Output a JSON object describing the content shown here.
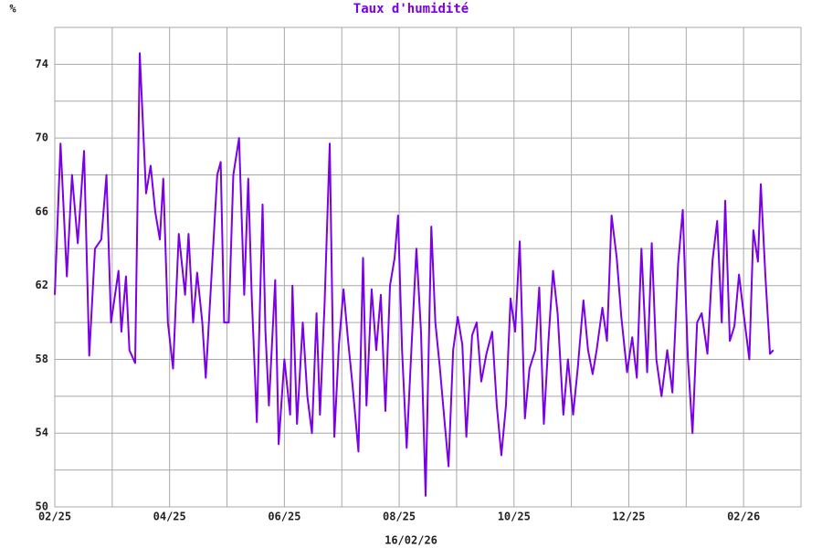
{
  "chart_data": {
    "type": "line",
    "title": "Taux d'humidité",
    "ylabel": "%",
    "xlabel": "16/02/26",
    "color": "#7a00e6",
    "grid": true,
    "xlim": [
      0,
      13
    ],
    "ylim": [
      50,
      76
    ],
    "xticks": [
      {
        "value": 0,
        "label": "02/25"
      },
      {
        "value": 2,
        "label": "04/25"
      },
      {
        "value": 4,
        "label": "06/25"
      },
      {
        "value": 6,
        "label": "08/25"
      },
      {
        "value": 8,
        "label": "10/25"
      },
      {
        "value": 10,
        "label": "12/25"
      },
      {
        "value": 12,
        "label": "02/26"
      }
    ],
    "yticks": [
      50,
      54,
      58,
      62,
      66,
      70,
      74
    ],
    "x": [
      0.0,
      0.1,
      0.21,
      0.3,
      0.4,
      0.51,
      0.6,
      0.7,
      0.81,
      0.9,
      0.98,
      1.11,
      1.16,
      1.24,
      1.3,
      1.4,
      1.48,
      1.59,
      1.67,
      1.75,
      1.83,
      1.89,
      1.97,
      2.06,
      2.16,
      2.27,
      2.33,
      2.41,
      2.48,
      2.57,
      2.63,
      2.73,
      2.83,
      2.89,
      2.95,
      3.03,
      3.11,
      3.21,
      3.3,
      3.37,
      3.43,
      3.52,
      3.62,
      3.67,
      3.73,
      3.84,
      3.9,
      4.0,
      4.1,
      4.14,
      4.22,
      4.32,
      4.4,
      4.48,
      4.56,
      4.62,
      4.7,
      4.79,
      4.87,
      4.95,
      5.03,
      5.11,
      5.19,
      5.29,
      5.37,
      5.43,
      5.52,
      5.6,
      5.68,
      5.76,
      5.84,
      5.92,
      5.98,
      6.05,
      6.13,
      6.22,
      6.3,
      6.38,
      6.46,
      6.56,
      6.63,
      6.71,
      6.78,
      6.86,
      6.94,
      7.02,
      7.1,
      7.17,
      7.27,
      7.35,
      7.43,
      7.52,
      7.62,
      7.7,
      7.78,
      7.86,
      7.94,
      8.02,
      8.1,
      8.19,
      8.27,
      8.37,
      8.44,
      8.52,
      8.6,
      8.68,
      8.76,
      8.86,
      8.94,
      9.03,
      9.11,
      9.21,
      9.29,
      9.37,
      9.44,
      9.54,
      9.62,
      9.7,
      9.79,
      9.87,
      9.97,
      10.06,
      10.14,
      10.22,
      10.32,
      10.4,
      10.48,
      10.57,
      10.67,
      10.76,
      10.86,
      10.94,
      11.03,
      11.11,
      11.19,
      11.27,
      11.37,
      11.46,
      11.54,
      11.62,
      11.68,
      11.76,
      11.84,
      11.92,
      12.0,
      12.1,
      12.17,
      12.25,
      12.3,
      12.38,
      12.46,
      12.52
    ],
    "values": [
      61.5,
      69.7,
      62.5,
      68.0,
      64.3,
      69.3,
      58.2,
      64.0,
      64.5,
      68.0,
      60.0,
      62.8,
      59.5,
      62.5,
      58.5,
      57.8,
      74.6,
      67.0,
      68.5,
      66.0,
      64.5,
      67.8,
      60.0,
      57.5,
      64.8,
      61.5,
      64.8,
      60.0,
      62.7,
      60.0,
      57.0,
      62.5,
      68.0,
      68.7,
      60.0,
      60.0,
      68.0,
      70.0,
      61.5,
      67.8,
      61.5,
      54.6,
      66.4,
      59.5,
      55.5,
      62.3,
      53.4,
      58.0,
      55.0,
      62.0,
      54.5,
      60.0,
      56.0,
      54.0,
      60.5,
      55.0,
      61.0,
      69.7,
      53.8,
      58.8,
      61.8,
      59.0,
      56.5,
      53.0,
      63.5,
      55.5,
      61.8,
      58.5,
      61.5,
      55.2,
      62.0,
      63.5,
      65.8,
      58.5,
      53.2,
      59.0,
      64.0,
      59.5,
      50.6,
      65.2,
      60.0,
      57.5,
      55.0,
      52.2,
      58.5,
      60.3,
      58.8,
      53.8,
      59.3,
      60.0,
      56.8,
      58.3,
      59.5,
      55.5,
      52.8,
      55.5,
      61.3,
      59.5,
      64.4,
      54.8,
      57.5,
      58.5,
      61.9,
      54.5,
      59.0,
      62.8,
      60.5,
      55.0,
      58.0,
      55.0,
      57.5,
      61.2,
      58.5,
      57.2,
      58.5,
      60.8,
      59.0,
      65.8,
      63.5,
      60.3,
      57.3,
      59.2,
      57.0,
      64.0,
      57.3,
      64.3,
      58.0,
      56.0,
      58.5,
      56.2,
      63.2,
      66.1,
      58.0,
      54.0,
      60.0,
      60.5,
      58.3,
      63.4,
      65.5,
      60.0,
      66.6,
      59.0,
      59.8,
      62.6,
      60.5,
      58.0,
      65.0,
      63.3,
      67.5,
      62.5,
      58.3,
      58.5
    ]
  }
}
